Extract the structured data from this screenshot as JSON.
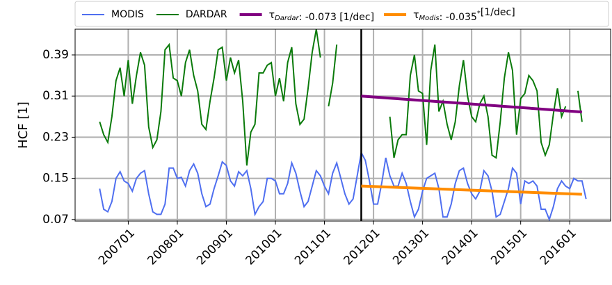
{
  "chart_data": {
    "type": "line",
    "ylabel": "HCF [1]",
    "x": [
      "200606",
      "200607",
      "200608",
      "200609",
      "200610",
      "200611",
      "200612",
      "200701",
      "200702",
      "200703",
      "200704",
      "200705",
      "200706",
      "200707",
      "200708",
      "200709",
      "200710",
      "200711",
      "200712",
      "200801",
      "200802",
      "200803",
      "200804",
      "200805",
      "200806",
      "200807",
      "200808",
      "200809",
      "200810",
      "200811",
      "200812",
      "200901",
      "200902",
      "200903",
      "200904",
      "200905",
      "200906",
      "200907",
      "200908",
      "200909",
      "200910",
      "200911",
      "200912",
      "201001",
      "201002",
      "201003",
      "201004",
      "201005",
      "201006",
      "201007",
      "201008",
      "201009",
      "201010",
      "201011",
      "201012",
      "201101",
      "201102",
      "201103",
      "201104",
      "201105",
      "201106",
      "201107",
      "201108",
      "201109",
      "201110",
      "201111",
      "201112",
      "201201",
      "201202",
      "201203",
      "201204",
      "201205",
      "201206",
      "201207",
      "201208",
      "201209",
      "201210",
      "201211",
      "201212",
      "201301",
      "201302",
      "201303",
      "201304",
      "201305",
      "201306",
      "201307",
      "201308",
      "201309",
      "201310",
      "201311",
      "201312",
      "201401",
      "201402",
      "201403",
      "201404",
      "201405",
      "201406",
      "201407",
      "201408",
      "201409",
      "201410",
      "201411",
      "201412",
      "201501",
      "201502",
      "201503",
      "201504",
      "201505",
      "201506",
      "201507",
      "201508",
      "201509",
      "201510",
      "201511",
      "201512",
      "201601",
      "201602",
      "201603",
      "201604",
      "201605"
    ],
    "series": [
      {
        "name": "MODIS",
        "color": "#4f6ff0",
        "values": [
          0.13,
          0.09,
          0.085,
          0.105,
          0.15,
          0.163,
          0.145,
          0.14,
          0.125,
          0.15,
          0.16,
          0.165,
          0.12,
          0.085,
          0.08,
          0.08,
          0.1,
          0.17,
          0.17,
          0.15,
          0.152,
          0.135,
          0.165,
          0.178,
          0.16,
          0.12,
          0.095,
          0.1,
          0.13,
          0.155,
          0.182,
          0.175,
          0.145,
          0.135,
          0.163,
          0.155,
          0.165,
          0.13,
          0.08,
          0.095,
          0.105,
          0.15,
          0.15,
          0.145,
          0.12,
          0.12,
          0.14,
          0.18,
          0.16,
          0.125,
          0.095,
          0.105,
          0.135,
          0.165,
          0.155,
          0.135,
          0.12,
          0.16,
          0.18,
          0.15,
          0.12,
          0.1,
          0.11,
          0.155,
          0.2,
          0.185,
          0.145,
          0.1,
          0.1,
          0.14,
          0.19,
          0.155,
          0.135,
          0.135,
          0.16,
          0.14,
          0.105,
          0.075,
          0.09,
          0.125,
          0.15,
          0.155,
          0.16,
          0.13,
          0.075,
          0.075,
          0.1,
          0.14,
          0.165,
          0.17,
          0.14,
          0.12,
          0.11,
          0.125,
          0.165,
          0.155,
          0.125,
          0.075,
          0.08,
          0.105,
          0.13,
          0.17,
          0.16,
          0.1,
          0.145,
          0.14,
          0.145,
          0.135,
          0.09,
          0.09,
          0.07,
          0.095,
          0.13,
          0.145,
          0.135,
          0.13,
          0.15,
          0.145,
          0.145,
          0.11
        ]
      },
      {
        "name": "DARDAR",
        "color": "#0a7a0a",
        "values": [
          0.26,
          0.235,
          0.22,
          0.27,
          0.34,
          0.365,
          0.31,
          0.38,
          0.295,
          0.35,
          0.395,
          0.37,
          0.25,
          0.21,
          0.225,
          0.28,
          0.4,
          0.41,
          0.345,
          0.34,
          0.31,
          0.375,
          0.4,
          0.35,
          0.32,
          0.255,
          0.245,
          0.3,
          0.345,
          0.4,
          0.405,
          0.34,
          0.385,
          0.355,
          0.38,
          0.3,
          0.175,
          0.24,
          0.255,
          0.355,
          0.355,
          0.37,
          0.375,
          0.31,
          0.345,
          0.3,
          0.375,
          0.405,
          0.295,
          0.255,
          0.265,
          0.325,
          0.395,
          0.44,
          0.385,
          null,
          0.29,
          0.335,
          0.41,
          null,
          null,
          null,
          null,
          null,
          null,
          null,
          null,
          null,
          null,
          null,
          null,
          0.27,
          0.19,
          0.225,
          0.235,
          0.235,
          0.35,
          0.39,
          0.32,
          0.315,
          0.215,
          0.36,
          0.41,
          0.28,
          0.3,
          0.255,
          0.225,
          0.26,
          0.33,
          0.38,
          0.31,
          0.27,
          0.26,
          0.295,
          0.31,
          0.27,
          0.195,
          0.19,
          0.26,
          0.345,
          0.395,
          0.36,
          0.235,
          0.305,
          0.315,
          0.35,
          0.34,
          0.32,
          0.22,
          0.195,
          0.215,
          0.275,
          0.325,
          0.27,
          0.29,
          null,
          null,
          0.32,
          0.26,
          null
        ]
      }
    ],
    "trends": [
      {
        "name_parts": [
          {
            "text": "τ"
          },
          {
            "text": "Dardar",
            "sub": true
          },
          {
            "text": ": -0.073 [1/dec]"
          }
        ],
        "color": "#800080",
        "x": [
          "201110",
          "201604"
        ],
        "values": [
          0.31,
          0.279
        ]
      },
      {
        "name_parts": [
          {
            "text": "τ"
          },
          {
            "text": "Modis",
            "sub": true
          },
          {
            "text": ": -0.035"
          },
          {
            "text": "*",
            "sup": true
          },
          {
            "text": "[1/dec]"
          }
        ],
        "color": "#ff8c00",
        "x": [
          "201110",
          "201604"
        ],
        "values": [
          0.135,
          0.119
        ]
      }
    ],
    "vline": {
      "x": "201110",
      "color": "#000000"
    },
    "xlim": [
      "200512",
      "201611"
    ],
    "xticks": [
      "200701",
      "200801",
      "200901",
      "201001",
      "201101",
      "201201",
      "201301",
      "201401",
      "201501",
      "201601"
    ],
    "ylim": [
      0.067,
      0.44
    ],
    "yticks": [
      0.07,
      0.15,
      0.23,
      0.31,
      0.39
    ],
    "grid": true
  }
}
